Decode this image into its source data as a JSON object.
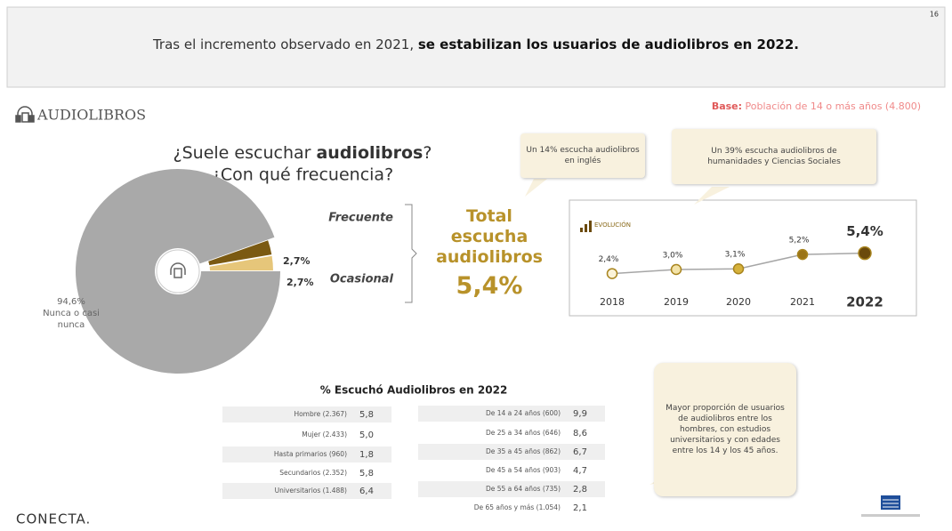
{
  "page_number": "16",
  "header": {
    "title": [
      "Tras el incremento observado en 2021, ",
      "se estabilizan los usuarios de audiolibros en 2022."
    ]
  },
  "section": "AUDIOLIBROS",
  "base": [
    "Base:",
    " Población de 14 o más años (4.800)"
  ],
  "question": {
    "line1": [
      "¿Suele escuchar ",
      "audiolibros",
      "?"
    ],
    "line2": "¿Con qué frecuencia?"
  },
  "total": {
    "label": [
      "Total",
      "escucha",
      "audiolibros"
    ],
    "value": "5,4%"
  },
  "callouts": [
    "Un 14% escucha audiolibros en inglés",
    "Un 39% escucha audiolibros de humanidades y Ciencias Sociales",
    "Mayor proporción de usuarios de audiolibros entre los hombres, con estudios universitarios y con edades entre los 14 y los 45 años."
  ],
  "chart_data": [
    {
      "type": "pie",
      "categories": [
        "Frecuente",
        "Ocasional",
        "Nunca o casi nunca"
      ],
      "values": [
        2.7,
        2.7,
        94.6
      ],
      "value_labels": [
        "2,7%",
        "2,7%",
        "94,6%"
      ],
      "colors": [
        "#7b5a12",
        "#e6c67a",
        "#a9a9a9"
      ]
    },
    {
      "type": "line",
      "title": "EVOLUCIÓN",
      "categories": [
        "2018",
        "2019",
        "2020",
        "2021",
        "2022"
      ],
      "values": [
        2.4,
        3.0,
        3.1,
        5.2,
        5.4
      ],
      "value_labels": [
        "2,4%",
        "3,0%",
        "3,1%",
        "5,2%",
        "5,4%"
      ],
      "color": "#a6a6a6",
      "colors": [
        "#fbf3d8",
        "#f3e3a8",
        "#d6b23c",
        "#9a7418",
        "#6b4a0c"
      ],
      "ylim": [
        0,
        6
      ]
    }
  ],
  "table": {
    "title": "% Escuchó Audiolibros en 2022",
    "left": [
      [
        "Hombre (2.367)",
        "5,8"
      ],
      [
        "Mujer (2.433)",
        "5,0"
      ],
      [
        "Hasta primarios (960)",
        "1,8"
      ],
      [
        "Secundarios (2.352)",
        "5,8"
      ],
      [
        "Universitarios (1.488)",
        "6,4"
      ]
    ],
    "right": [
      [
        "De 14 a 24 años (600)",
        "9,9"
      ],
      [
        "De 25 a 34 años (646)",
        "8,6"
      ],
      [
        "De 35 a 45 años (862)",
        "6,7"
      ],
      [
        "De 45 a 54 años (903)",
        "4,7"
      ],
      [
        "De 55 a 64 años (735)",
        "2,8"
      ],
      [
        "De 65 años y más (1.054)",
        "2,1"
      ]
    ]
  },
  "footer": {
    "brand": "CONECTA."
  }
}
